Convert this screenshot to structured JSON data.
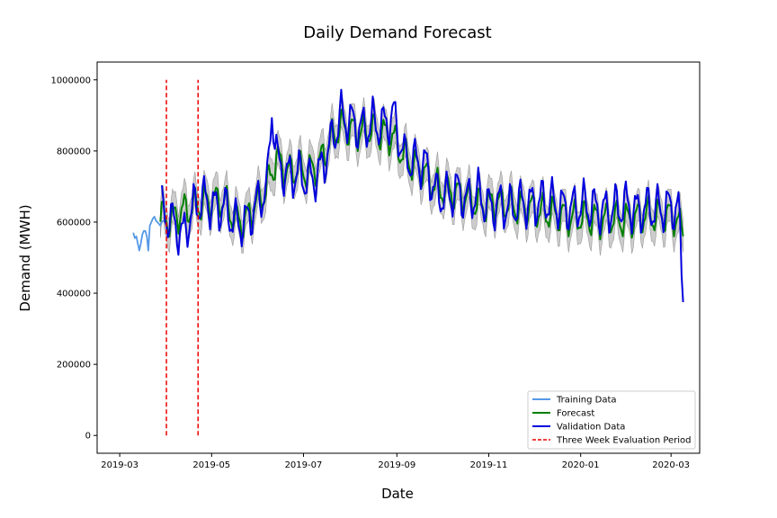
{
  "chart_data": {
    "type": "line",
    "title": "Daily Demand Forecast",
    "xlabel": "Date",
    "ylabel": "Demand (MWH)",
    "ylim": [
      -50000,
      1050000
    ],
    "x_range": [
      "2019-02-14",
      "2020-03-20"
    ],
    "yticks": [
      0,
      200000,
      400000,
      600000,
      800000,
      1000000
    ],
    "ytick_labels": [
      "0",
      "200000",
      "400000",
      "600000",
      "800000",
      "1000000"
    ],
    "xticks": [
      "2019-03-01",
      "2019-05-01",
      "2019-07-01",
      "2019-09-01",
      "2019-11-01",
      "2020-01-01",
      "2020-03-01"
    ],
    "xtick_labels": [
      "2019-03",
      "2019-05",
      "2019-07",
      "2019-09",
      "2019-11",
      "2020-01",
      "2020-03"
    ],
    "evaluation_period": {
      "start": "2019-04-01",
      "end": "2019-04-22",
      "y_range": [
        0,
        1000000
      ]
    },
    "legend_position": "lower-right",
    "series": [
      {
        "name": "Training Data",
        "color": "#5599e6",
        "points": [
          [
            "2019-03-10",
            570000
          ],
          [
            "2019-03-11",
            555000
          ],
          [
            "2019-03-12",
            560000
          ],
          [
            "2019-03-13",
            540000
          ],
          [
            "2019-03-14",
            520000
          ],
          [
            "2019-03-15",
            540000
          ],
          [
            "2019-03-16",
            565000
          ],
          [
            "2019-03-17",
            575000
          ],
          [
            "2019-03-18",
            575000
          ],
          [
            "2019-03-19",
            560000
          ],
          [
            "2019-03-20",
            520000
          ],
          [
            "2019-03-21",
            590000
          ],
          [
            "2019-03-22",
            600000
          ],
          [
            "2019-03-23",
            610000
          ],
          [
            "2019-03-24",
            615000
          ],
          [
            "2019-03-25",
            605000
          ],
          [
            "2019-03-26",
            600000
          ],
          [
            "2019-03-27",
            595000
          ],
          [
            "2019-03-28",
            590000
          ],
          [
            "2019-03-29",
            600000
          ],
          [
            "2019-03-30",
            605000
          ]
        ]
      },
      {
        "name": "Forecast",
        "color": "#008000",
        "points": [
          [
            "2019-03-28",
            615000
          ],
          [
            "2019-04-04",
            605000
          ],
          [
            "2019-04-11",
            630000
          ],
          [
            "2019-04-18",
            640000
          ],
          [
            "2019-04-25",
            655000
          ],
          [
            "2019-05-02",
            660000
          ],
          [
            "2019-05-09",
            660000
          ],
          [
            "2019-05-16",
            610000
          ],
          [
            "2019-05-23",
            600000
          ],
          [
            "2019-05-30",
            650000
          ],
          [
            "2019-06-06",
            690000
          ],
          [
            "2019-06-13",
            780000
          ],
          [
            "2019-06-20",
            740000
          ],
          [
            "2019-06-27",
            750000
          ],
          [
            "2019-07-04",
            740000
          ],
          [
            "2019-07-11",
            760000
          ],
          [
            "2019-07-18",
            820000
          ],
          [
            "2019-07-25",
            870000
          ],
          [
            "2019-08-01",
            860000
          ],
          [
            "2019-08-08",
            850000
          ],
          [
            "2019-08-15",
            860000
          ],
          [
            "2019-08-22",
            850000
          ],
          [
            "2019-08-29",
            840000
          ],
          [
            "2019-09-05",
            790000
          ],
          [
            "2019-09-12",
            760000
          ],
          [
            "2019-09-19",
            740000
          ],
          [
            "2019-09-26",
            700000
          ],
          [
            "2019-10-03",
            690000
          ],
          [
            "2019-10-10",
            680000
          ],
          [
            "2019-10-17",
            670000
          ],
          [
            "2019-10-24",
            650000
          ],
          [
            "2019-10-31",
            650000
          ],
          [
            "2019-11-07",
            655000
          ],
          [
            "2019-11-14",
            650000
          ],
          [
            "2019-11-21",
            640000
          ],
          [
            "2019-11-28",
            640000
          ],
          [
            "2019-12-05",
            630000
          ],
          [
            "2019-12-12",
            625000
          ],
          [
            "2019-12-19",
            620000
          ],
          [
            "2019-12-26",
            610000
          ],
          [
            "2020-01-02",
            615000
          ],
          [
            "2020-01-09",
            610000
          ],
          [
            "2020-01-16",
            605000
          ],
          [
            "2020-01-23",
            610000
          ],
          [
            "2020-01-30",
            605000
          ],
          [
            "2020-02-06",
            610000
          ],
          [
            "2020-02-13",
            620000
          ],
          [
            "2020-02-20",
            615000
          ],
          [
            "2020-02-27",
            620000
          ],
          [
            "2020-03-05",
            610000
          ],
          [
            "2020-03-09",
            560000
          ]
        ]
      },
      {
        "name": "Validation Data",
        "color": "#0000dd",
        "points": [
          [
            "2019-03-29",
            630000
          ],
          [
            "2019-04-05",
            600000
          ],
          [
            "2019-04-12",
            560000
          ],
          [
            "2019-04-19",
            640000
          ],
          [
            "2019-04-26",
            665000
          ],
          [
            "2019-05-03",
            640000
          ],
          [
            "2019-05-10",
            640000
          ],
          [
            "2019-05-17",
            595000
          ],
          [
            "2019-05-24",
            600000
          ],
          [
            "2019-05-31",
            650000
          ],
          [
            "2019-06-07",
            700000
          ],
          [
            "2019-06-10",
            920000
          ],
          [
            "2019-06-14",
            760000
          ],
          [
            "2019-06-21",
            730000
          ],
          [
            "2019-06-28",
            735000
          ],
          [
            "2019-07-05",
            715000
          ],
          [
            "2019-07-12",
            740000
          ],
          [
            "2019-07-19",
            820000
          ],
          [
            "2019-07-26",
            900000
          ],
          [
            "2019-08-02",
            880000
          ],
          [
            "2019-08-09",
            860000
          ],
          [
            "2019-08-16",
            880000
          ],
          [
            "2019-08-23",
            870000
          ],
          [
            "2019-08-30",
            900000
          ],
          [
            "2019-09-06",
            780000
          ],
          [
            "2019-09-13",
            770000
          ],
          [
            "2019-09-20",
            760000
          ],
          [
            "2019-09-27",
            680000
          ],
          [
            "2019-10-04",
            670000
          ],
          [
            "2019-10-11",
            690000
          ],
          [
            "2019-10-18",
            660000
          ],
          [
            "2019-10-25",
            680000
          ],
          [
            "2019-11-01",
            640000
          ],
          [
            "2019-11-08",
            650000
          ],
          [
            "2019-11-15",
            640000
          ],
          [
            "2019-11-22",
            655000
          ],
          [
            "2019-11-29",
            650000
          ],
          [
            "2019-12-06",
            660000
          ],
          [
            "2019-12-13",
            655000
          ],
          [
            "2019-12-20",
            640000
          ],
          [
            "2019-12-27",
            640000
          ],
          [
            "2020-01-03",
            650000
          ],
          [
            "2020-01-10",
            640000
          ],
          [
            "2020-01-17",
            630000
          ],
          [
            "2020-01-24",
            640000
          ],
          [
            "2020-01-31",
            650000
          ],
          [
            "2020-02-07",
            630000
          ],
          [
            "2020-02-14",
            640000
          ],
          [
            "2020-02-21",
            635000
          ],
          [
            "2020-02-28",
            640000
          ],
          [
            "2020-03-06",
            640000
          ],
          [
            "2020-03-09",
            375000
          ]
        ]
      }
    ],
    "confidence_band": {
      "color": "#bbbbbb",
      "half_width": 45000
    },
    "legend": [
      {
        "label": "Training Data",
        "color": "#5599e6",
        "style": "solid"
      },
      {
        "label": "Forecast",
        "color": "#008000",
        "style": "solid"
      },
      {
        "label": "Validation Data",
        "color": "#0000dd",
        "style": "solid"
      },
      {
        "label": "Three Week Evaluation Period",
        "color": "#ee0000",
        "style": "dashed"
      }
    ]
  }
}
